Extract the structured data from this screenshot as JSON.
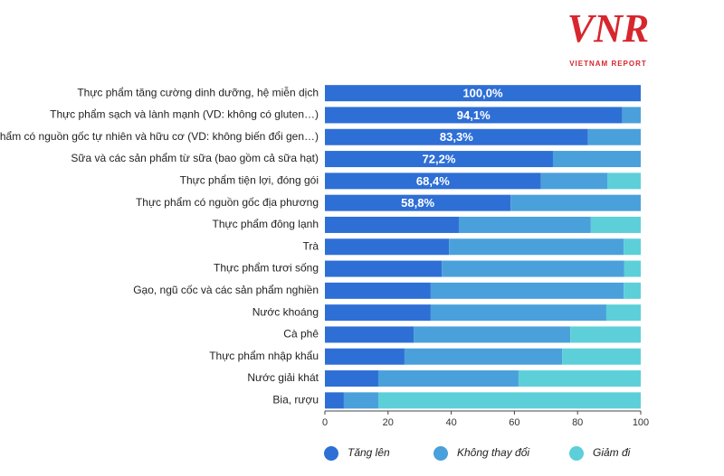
{
  "logo": {
    "name": "VNR",
    "subtitle": "VIETNAM REPORT"
  },
  "chart_data": {
    "type": "stacked_barh",
    "categories": [
      "Thực phẩm tăng cường dinh dưỡng, hệ miễn dịch",
      "Thực phẩm sạch và lành mạnh (VD: không có gluten…)",
      "Thực phẩm có nguồn gốc tự nhiên và hữu cơ (VD: không biến đổi gen…)",
      "Sữa và các sản phẩm từ sữa (bao gồm cả sữa hạt)",
      "Thực phẩm tiện lợi, đóng gói",
      "Thực phẩm có nguồn gốc địa phương",
      "Thực phẩm đông lạnh",
      "Trà",
      "Thực phẩm tươi sống",
      "Gạo, ngũ cốc và các sản phẩm nghiền",
      "Nước khoáng",
      "Cà phê",
      "Thực phẩm nhập khẩu",
      "Nước giải khát",
      "Bia, rượu"
    ],
    "series": [
      {
        "name": "Tăng lên",
        "color": "#2e6fd6",
        "values": [
          100,
          94.1,
          83.3,
          72.2,
          68.4,
          58.8,
          42.4,
          39.3,
          37.0,
          33.5,
          33.5,
          28.1,
          25.2,
          16.9,
          6.0
        ],
        "value_labels": [
          "100,0%",
          "94,1%",
          "83,3%",
          "72,2%",
          "68,4%",
          "58,8%",
          null,
          null,
          null,
          null,
          null,
          null,
          null,
          null,
          null
        ]
      },
      {
        "name": "Không thay đổi",
        "color": "#4aa0da",
        "values": [
          0,
          5.9,
          16.7,
          27.8,
          21.0,
          41.2,
          41.8,
          55.3,
          57.8,
          61.1,
          55.6,
          49.6,
          49.9,
          44.4,
          10.9
        ]
      },
      {
        "name": "Giảm đi",
        "color": "#5ccfd9",
        "values": [
          0,
          0,
          0,
          0,
          10.6,
          0,
          15.8,
          5.4,
          5.2,
          5.4,
          10.9,
          22.3,
          24.9,
          38.7,
          83.1
        ]
      }
    ],
    "xlim": [
      0,
      100
    ],
    "xticks": [
      0,
      20,
      40,
      60,
      80,
      100
    ],
    "legend": "bottom"
  }
}
